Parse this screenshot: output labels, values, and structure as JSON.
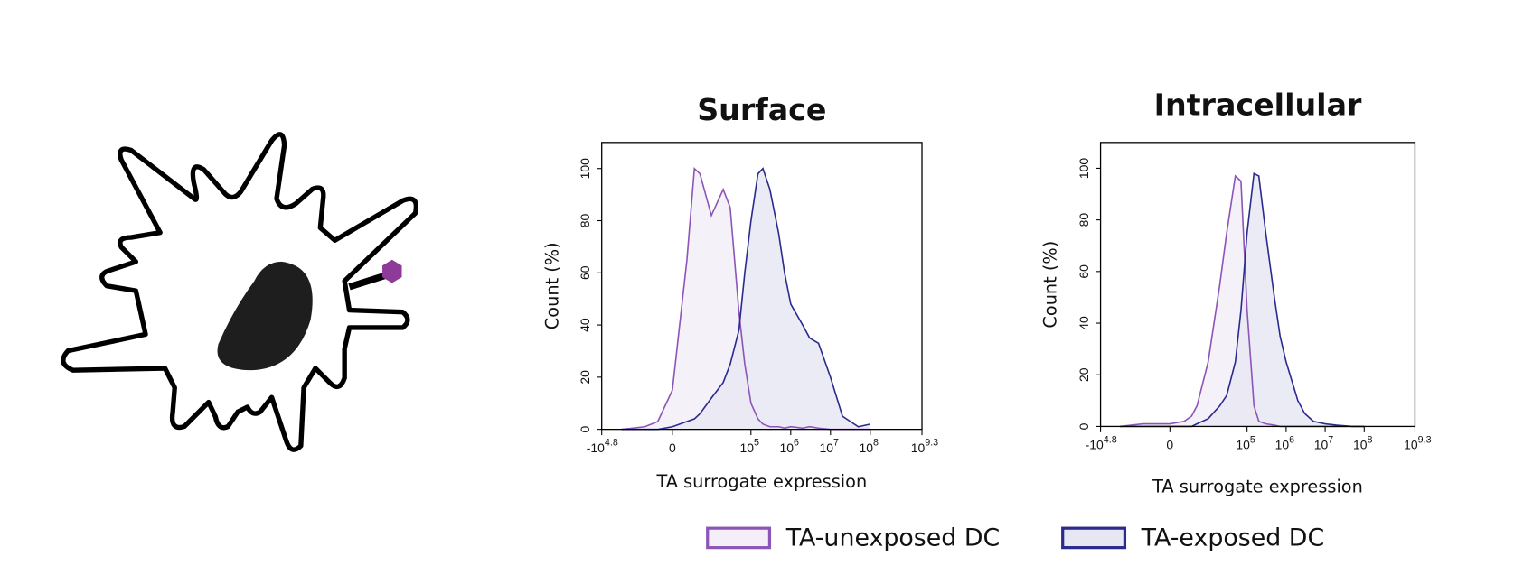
{
  "chart_data": [
    {
      "type": "histogram",
      "title": "Surface",
      "ylabel": "Count (%)",
      "xlabel": "TA surrogate expression",
      "xscale": "biexponential",
      "xlim": [
        -63096,
        1995262315
      ],
      "xticks": [
        {
          "value": -63096,
          "label": "-10",
          "exponent": "4.8"
        },
        0,
        {
          "value": 100000,
          "label": "10",
          "exponent": "5"
        },
        {
          "value": 1000000,
          "label": "10",
          "exponent": "6"
        },
        {
          "value": 10000000,
          "label": "10",
          "exponent": "7"
        },
        {
          "value": 100000000,
          "label": "10",
          "exponent": "8"
        },
        {
          "value": 1995262315,
          "label": "10",
          "exponent": "9.3"
        }
      ],
      "ylim": [
        0,
        110
      ],
      "yticks": [
        0,
        20,
        40,
        60,
        80,
        100
      ],
      "x": [
        -20000,
        -5000,
        -2000,
        0,
        2000,
        3500,
        5000,
        10000,
        20000,
        30000,
        50000,
        70000,
        100000,
        150000,
        200000,
        300000,
        500000,
        700000,
        1000000,
        2000000,
        3000000,
        5000000,
        10000000,
        20000000,
        50000000,
        100000000
      ],
      "series": [
        {
          "name": "TA-unexposed DC",
          "color": "#8d55b8",
          "fill": "#f3eef8",
          "values": [
            0,
            1,
            3,
            15,
            65,
            100,
            98,
            82,
            92,
            85,
            45,
            25,
            10,
            4,
            2,
            1,
            1,
            0.5,
            1,
            0.5,
            1,
            0.5,
            0,
            0,
            0,
            0
          ]
        },
        {
          "name": "TA-exposed DC",
          "color": "#2b2b8f",
          "fill": "#e7e7f3",
          "values": [
            0,
            0,
            0,
            1,
            3,
            4,
            6,
            12,
            18,
            25,
            38,
            60,
            80,
            98,
            100,
            92,
            75,
            60,
            48,
            40,
            35,
            33,
            20,
            5,
            1,
            2
          ]
        }
      ]
    },
    {
      "type": "histogram",
      "title": "Intracellular",
      "ylabel": "Count (%)",
      "xlabel": "TA surrogate expression",
      "xscale": "biexponential",
      "xlim": [
        -63096,
        1995262315
      ],
      "xticks": [
        {
          "value": -63096,
          "label": "-10",
          "exponent": "4.8"
        },
        0,
        {
          "value": 100000,
          "label": "10",
          "exponent": "5"
        },
        {
          "value": 1000000,
          "label": "10",
          "exponent": "6"
        },
        {
          "value": 10000000,
          "label": "10",
          "exponent": "7"
        },
        {
          "value": 100000000,
          "label": "10",
          "exponent": "8"
        },
        {
          "value": 1995262315,
          "label": "10",
          "exponent": "9.3"
        }
      ],
      "ylim": [
        0,
        110
      ],
      "yticks": [
        0,
        20,
        40,
        60,
        80,
        100
      ],
      "x": [
        -20000,
        -5000,
        -2000,
        0,
        2000,
        3500,
        5000,
        10000,
        20000,
        30000,
        50000,
        70000,
        100000,
        150000,
        200000,
        300000,
        500000,
        700000,
        1000000,
        2000000,
        3000000,
        5000000,
        10000000,
        20000000,
        50000000,
        100000000
      ],
      "series": [
        {
          "color": "#8d55b8",
          "fill": "#f3eef8",
          "values": [
            0,
            1,
            1,
            1,
            2,
            4,
            8,
            25,
            55,
            75,
            97,
            95,
            45,
            8,
            2,
            1,
            0.5,
            0,
            0,
            0,
            0,
            0,
            0,
            0,
            0,
            0
          ]
        },
        {
          "color": "#2b2b8f",
          "fill": "#e7e7f3",
          "values": [
            0,
            0,
            0,
            0,
            0,
            0,
            1,
            3,
            8,
            12,
            25,
            45,
            75,
            98,
            97,
            75,
            50,
            35,
            25,
            10,
            5,
            2,
            1,
            0.5,
            0,
            0
          ]
        }
      ]
    }
  ]
}
